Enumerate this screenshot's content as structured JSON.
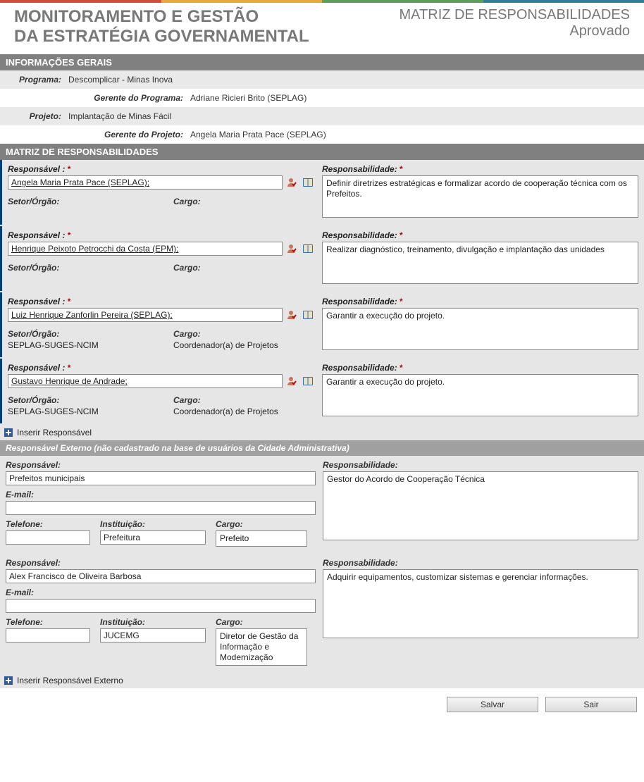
{
  "topbar_colors": [
    "#d24d3c",
    "#e8a93a",
    "#5aa05a",
    "#2f7e9a"
  ],
  "header": {
    "title_line1": "MONITORAMENTO E GESTÃO",
    "title_line2": "DA ESTRATÉGIA GOVERNAMENTAL",
    "subtitle": "MATRIZ DE RESPONSABILIDADES",
    "status": "Aprovado"
  },
  "sections": {
    "info": "INFORMAÇÕES GERAIS",
    "matrix": "MATRIZ DE RESPONSABILIDADES",
    "ext": "Responsável Externo (não cadastrado na base de usuários da Cidade Administrativa)"
  },
  "info": {
    "programa_label": "Programa:",
    "programa": "Descomplicar - Minas Inova",
    "gerente_programa_label": "Gerente do Programa:",
    "gerente_programa": "Adriane Ricieri Brito (SEPLAG)",
    "projeto_label": "Projeto:",
    "projeto": "Implantação de Minas Fácil",
    "gerente_projeto_label": "Gerente do Projeto:",
    "gerente_projeto": "Angela Maria Prata Pace (SEPLAG)"
  },
  "labels": {
    "responsavel": "Responsável :",
    "responsabilidade": "Responsabilidade:",
    "setor": "Setor/Órgão:",
    "cargo": "Cargo:",
    "email": "E-mail:",
    "telefone": "Telefone:",
    "instituicao": "Instituição:",
    "req": "*",
    "inserir_resp": "Inserir Responsável",
    "inserir_resp_ext": "Inserir Responsável Externo",
    "ext_responsavel": "Responsável:",
    "ext_responsabilidade": "Responsabilidade:"
  },
  "responsaveis": [
    {
      "nome": "Angela Maria Prata Pace (SEPLAG);",
      "setor": "",
      "cargo": "",
      "responsabilidade": "Definir diretrizes estratégicas e formalizar acordo de cooperação técnica com os Prefeitos."
    },
    {
      "nome": "Henrique Peixoto Petrocchi da Costa (EPM);",
      "setor": "",
      "cargo": "",
      "responsabilidade": "Realizar diagnóstico, treinamento, divulgação e implantação das unidades"
    },
    {
      "nome": "Luiz Henrique Zanforlin Pereira (SEPLAG);",
      "setor": "SEPLAG-SUGES-NCIM",
      "cargo": "Coordenador(a) de Projetos",
      "responsabilidade": "Garantir a execução do projeto."
    },
    {
      "nome": "Gustavo Henrique de Andrade;",
      "setor": "SEPLAG-SUGES-NCIM",
      "cargo": "Coordenador(a) de Projetos",
      "responsabilidade": "Garantir a execução do projeto."
    }
  ],
  "externos": [
    {
      "nome": "Prefeitos municipais",
      "email": "",
      "telefone": "",
      "instituicao": "Prefeitura",
      "cargo": "Prefeito",
      "responsabilidade": "Gestor do Acordo de Cooperação Técnica"
    },
    {
      "nome": "Alex Francisco de Oliveira Barbosa",
      "email": "",
      "telefone": "",
      "instituicao": "JUCEMG",
      "cargo": "Diretor de Gestão da Informação e Modernização",
      "responsabilidade": "Adquirir equipamentos, customizar sistemas e gerenciar informações."
    }
  ],
  "buttons": {
    "salvar": "Salvar",
    "sair": "Sair"
  },
  "colors": {
    "section_bar": "#808080",
    "sub_bar": "#a0a0a0",
    "bg_alt": "#e9e9e9",
    "matrix_bg": "#e6e6e6",
    "border_accent": "#003f7a",
    "required": "#c40000"
  }
}
